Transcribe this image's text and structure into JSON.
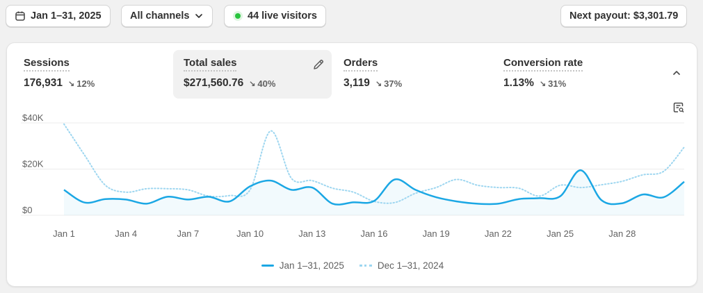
{
  "topbar": {
    "date_range": "Jan 1–31, 2025",
    "channels": "All channels",
    "live_visitors": "44 live visitors",
    "next_payout": "Next payout: $3,301.79"
  },
  "metrics": [
    {
      "label": "Sessions",
      "value": "176,931",
      "change": "12%"
    },
    {
      "label": "Total sales",
      "value": "$271,560.76",
      "change": "40%"
    },
    {
      "label": "Orders",
      "value": "3,119",
      "change": "37%"
    },
    {
      "label": "Conversion rate",
      "value": "1.13%",
      "change": "31%"
    }
  ],
  "colors": {
    "current": "#1ba7e4",
    "previous": "#9dd6f0",
    "live_dot": "#29c43e",
    "active_metric_bg": "#f1f1f1"
  },
  "chart_data": {
    "type": "line",
    "x": [
      "1",
      "2",
      "3",
      "4",
      "5",
      "6",
      "7",
      "8",
      "9",
      "10",
      "11",
      "12",
      "13",
      "14",
      "15",
      "16",
      "17",
      "18",
      "19",
      "20",
      "21",
      "22",
      "23",
      "24",
      "25",
      "26",
      "27",
      "28",
      "29",
      "30",
      "31"
    ],
    "xticks": [
      "Jan 1",
      "Jan 4",
      "Jan 7",
      "Jan 10",
      "Jan 13",
      "Jan 16",
      "Jan 19",
      "Jan 22",
      "Jan 25",
      "Jan 28"
    ],
    "yticks": [
      "$0",
      "$20K",
      "$40K"
    ],
    "ylim": [
      0,
      40000
    ],
    "grid": true,
    "legend_position": "bottom",
    "series": [
      {
        "name": "Jan 1–31, 2025",
        "style": "solid",
        "values": [
          11000,
          5500,
          7000,
          6800,
          5000,
          8000,
          6800,
          8000,
          6000,
          12500,
          15000,
          11000,
          12000,
          5000,
          5600,
          6200,
          15500,
          11000,
          7800,
          6000,
          5000,
          5000,
          7000,
          7400,
          8200,
          19500,
          6500,
          5200,
          9000,
          7800,
          14500
        ]
      },
      {
        "name": "Dec 1–31, 2024",
        "style": "dotted",
        "values": [
          39500,
          26000,
          13000,
          10000,
          11500,
          11500,
          11000,
          8300,
          8500,
          11000,
          36500,
          16000,
          15000,
          11700,
          10000,
          6000,
          5500,
          9500,
          12000,
          15500,
          13000,
          12000,
          11700,
          8300,
          13000,
          12000,
          13200,
          14700,
          17500,
          19000,
          29500
        ]
      }
    ]
  }
}
